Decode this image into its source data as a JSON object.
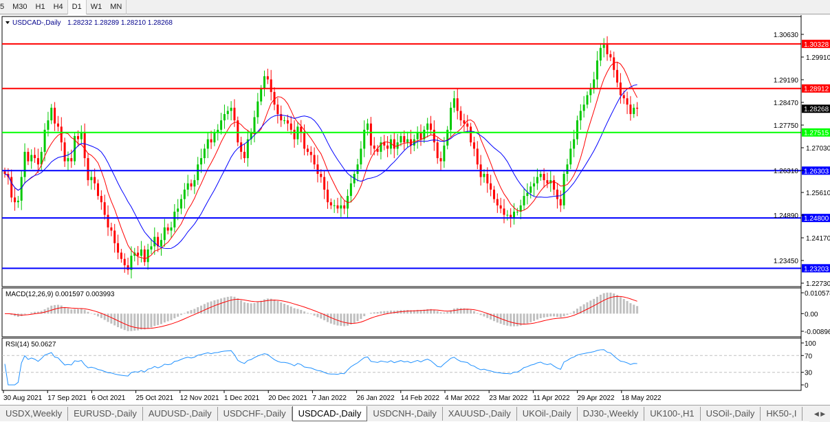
{
  "toolbar": {
    "timeframes": [
      "5",
      "M30",
      "H1",
      "H4",
      "D1",
      "W1",
      "MN"
    ],
    "active": "D1"
  },
  "chart": {
    "symbol_label": "USDCAD-,Daily",
    "ohlc": "1.28232 1.28289 1.28210 1.28268",
    "current_price": "1.28268",
    "y_ticks": [
      "1.30630",
      "1.29910",
      "1.29190",
      "1.28470",
      "1.27750",
      "1.27030",
      "1.26310",
      "1.25610",
      "1.24890",
      "1.24170",
      "1.23450",
      "1.22730"
    ],
    "levels": [
      {
        "value": "1.30328",
        "color": "#ff0000"
      },
      {
        "value": "1.28912",
        "color": "#ff0000"
      },
      {
        "value": "1.27515",
        "color": "#00ff00"
      },
      {
        "value": "1.26303",
        "color": "#0000ff"
      },
      {
        "value": "1.24800",
        "color": "#0000ff"
      },
      {
        "value": "1.23203",
        "color": "#0000ff"
      }
    ],
    "colors": {
      "bull": "#00c800",
      "bear": "#ff0000",
      "ma_fast": "#ff0000",
      "ma_slow": "#0000ff"
    },
    "x_labels": [
      "30 Aug 2021",
      "17 Sep 2021",
      "6 Oct 2021",
      "25 Oct 2021",
      "12 Nov 2021",
      "1 Dec 2021",
      "20 Dec 2021",
      "7 Jan 2022",
      "26 Jan 2022",
      "14 Feb 2022",
      "4 Mar 2022",
      "23 Mar 2022",
      "11 Apr 2022",
      "29 Apr 2022",
      "18 May 2022"
    ]
  },
  "chart_data": {
    "type": "candlestick",
    "ylim": [
      1.2273,
      1.3063
    ],
    "closes": [
      1.262,
      1.261,
      1.2545,
      1.253,
      1.2535,
      1.261,
      1.269,
      1.266,
      1.268,
      1.267,
      1.265,
      1.269,
      1.276,
      1.279,
      1.283,
      1.278,
      1.277,
      1.272,
      1.266,
      1.267,
      1.266,
      1.274,
      1.273,
      1.275,
      1.267,
      1.26,
      1.261,
      1.259,
      1.255,
      1.253,
      1.249,
      1.245,
      1.244,
      1.24,
      1.237,
      1.235,
      1.233,
      1.2315,
      1.236,
      1.237,
      1.236,
      1.238,
      1.234,
      1.238,
      1.239,
      1.242,
      1.239,
      1.241,
      1.245,
      1.244,
      1.245,
      1.25,
      1.251,
      1.254,
      1.257,
      1.259,
      1.258,
      1.26,
      1.265,
      1.267,
      1.27,
      1.273,
      1.272,
      1.275,
      1.276,
      1.279,
      1.281,
      1.282,
      1.283,
      1.279,
      1.272,
      1.269,
      1.267,
      1.273,
      1.275,
      1.28,
      1.285,
      1.289,
      1.293,
      1.292,
      1.288,
      1.284,
      1.281,
      1.279,
      1.279,
      1.278,
      1.276,
      1.273,
      1.277,
      1.275,
      1.27,
      1.269,
      1.268,
      1.265,
      1.262,
      1.261,
      1.257,
      1.253,
      1.252,
      1.252,
      1.251,
      1.252,
      1.251,
      1.255,
      1.259,
      1.262,
      1.265,
      1.27,
      1.276,
      1.278,
      1.271,
      1.27,
      1.269,
      1.272,
      1.271,
      1.27,
      1.273,
      1.27,
      1.272,
      1.274,
      1.272,
      1.273,
      1.271,
      1.273,
      1.275,
      1.273,
      1.276,
      1.278,
      1.276,
      1.272,
      1.267,
      1.266,
      1.271,
      1.276,
      1.283,
      1.286,
      1.282,
      1.279,
      1.278,
      1.277,
      1.272,
      1.27,
      1.265,
      1.261,
      1.262,
      1.259,
      1.257,
      1.254,
      1.252,
      1.251,
      1.249,
      1.249,
      1.248,
      1.25,
      1.25,
      1.252,
      1.255,
      1.256,
      1.258,
      1.259,
      1.261,
      1.262,
      1.26,
      1.259,
      1.26,
      1.257,
      1.254,
      1.252,
      1.262,
      1.265,
      1.27,
      1.273,
      1.279,
      1.282,
      1.284,
      1.287,
      1.289,
      1.292,
      1.298,
      1.302,
      1.303,
      1.3,
      1.299,
      1.295,
      1.291,
      1.287,
      1.286,
      1.284,
      1.281,
      1.283,
      1.2827
    ],
    "macd": {
      "label": "MACD(12,26,9) 0.001597 0.003993",
      "y_ticks": [
        "0.010578",
        "0.00",
        "-0.00896"
      ],
      "ylim": [
        -0.00896,
        0.010578
      ]
    },
    "rsi": {
      "label": "RSI(14) 50.0627",
      "y_ticks": [
        "100",
        "70",
        "30",
        "0"
      ],
      "levels": [
        70,
        30
      ]
    }
  },
  "tabs": {
    "items": [
      "USDX,Weekly",
      "EURUSD-,Daily",
      "AUDUSD-,Daily",
      "USDCHF-,Daily",
      "USDCAD-,Daily",
      "USDCNH-,Daily",
      "XAUUSD-,Daily",
      "UKOil-,Daily",
      "DJ30-,Weekly",
      "UK100-,H1",
      "USOil-,Daily",
      "HK50-,I"
    ],
    "active": "USDCAD-,Daily"
  }
}
